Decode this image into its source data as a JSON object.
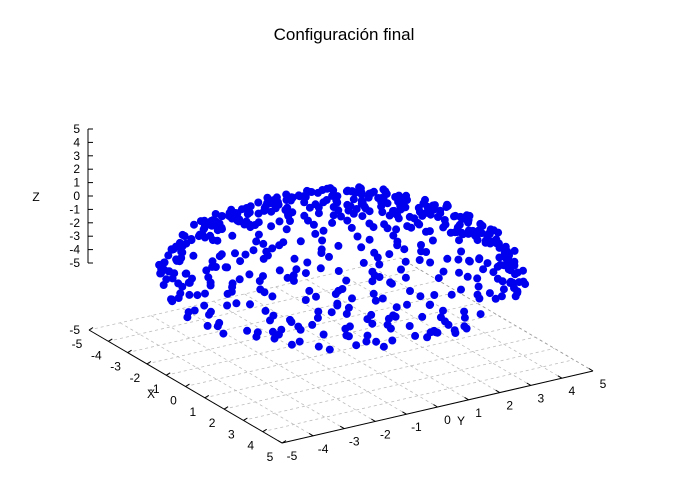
{
  "chart_data": {
    "type": "scatter",
    "title": "Configuración final",
    "xlabel": "X",
    "ylabel": "Y",
    "zlabel": "Z",
    "xlim": [
      -5,
      5
    ],
    "ylim": [
      -5,
      5
    ],
    "zlim": [
      -5,
      5
    ],
    "x_ticks": [
      "-5",
      "-4",
      "-3",
      "-2",
      "-1",
      "0",
      "1",
      "2",
      "3",
      "4",
      "5"
    ],
    "y_ticks": [
      "-5",
      "-4",
      "-3",
      "-2",
      "-1",
      "0",
      "1",
      "2",
      "3",
      "4",
      "5"
    ],
    "z_ticks": [
      "-5",
      "-4",
      "-3",
      "-2",
      "-1",
      "0",
      "1",
      "2",
      "3",
      "4",
      "5"
    ],
    "z_floor_tick": "-5",
    "grid": true,
    "marker_color": "#0000ee",
    "shape_note": "points lie on the upper half of a sphere of radius ~5 centred at the origin",
    "sample_points": [
      [
        0,
        0,
        5
      ],
      [
        4.9,
        0,
        0.5
      ],
      [
        -4.9,
        0,
        0.5
      ],
      [
        0,
        4.9,
        0.5
      ],
      [
        0,
        -4.9,
        0.5
      ],
      [
        3.5,
        3.5,
        0.5
      ],
      [
        -3.5,
        3.5,
        0.5
      ],
      [
        3.5,
        -3.5,
        0.5
      ],
      [
        -3.5,
        -3.5,
        0.5
      ],
      [
        2.5,
        0,
        4.3
      ],
      [
        -2.5,
        0,
        4.3
      ],
      [
        0,
        2.5,
        4.3
      ],
      [
        0,
        -2.5,
        4.3
      ]
    ]
  }
}
